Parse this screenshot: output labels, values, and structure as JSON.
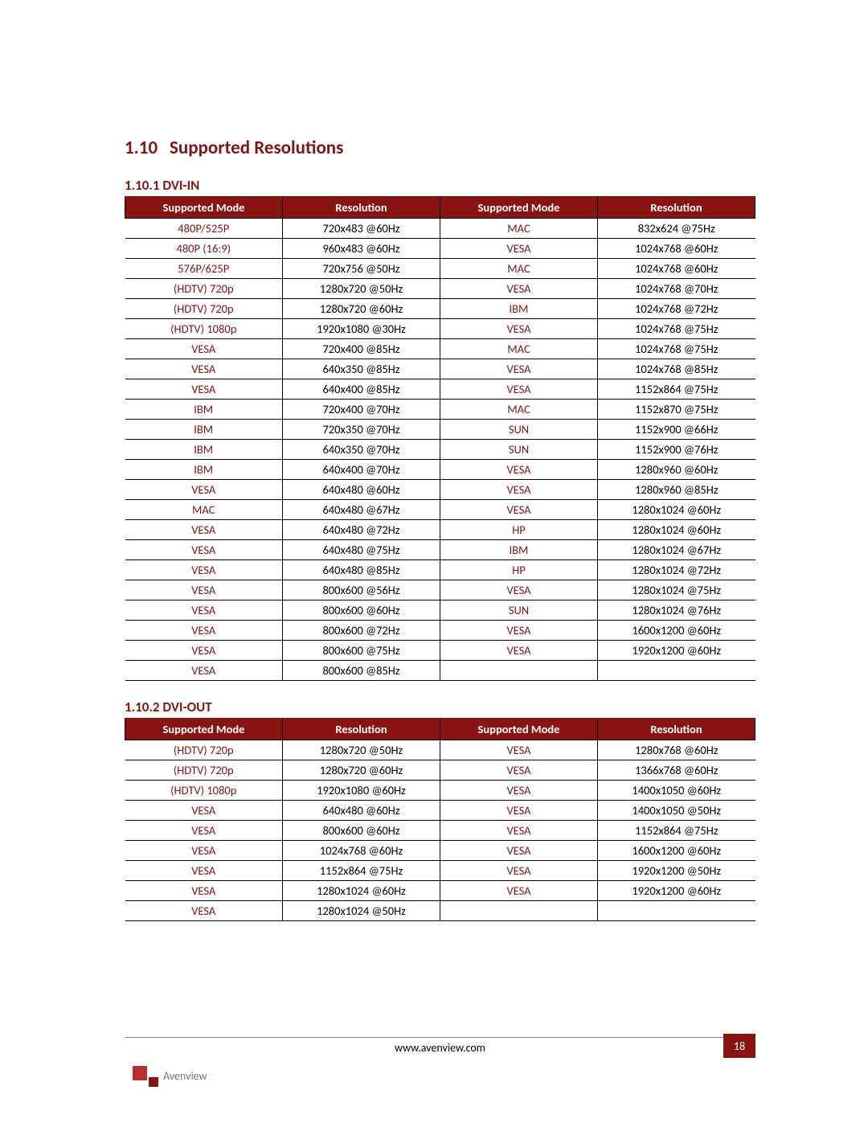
{
  "page": {
    "section_number": "1.10",
    "section_title": "Supported Resolutions",
    "footer_url": "www.avenview.com",
    "page_number": "18",
    "logo_text": "Avenview",
    "colors": {
      "brand_dark": "#7a1818",
      "header_bg": "#881414",
      "header_fg": "#ffffff",
      "text": "#000000",
      "border": "#000000",
      "page_bg": "#ffffff",
      "logo_red1": "#b72c2c",
      "logo_red2": "#881414",
      "logo_text": "#777777"
    }
  },
  "tables": {
    "dvi_in": {
      "heading": "1.10.1 DVI-IN",
      "columns": [
        "Supported Mode",
        "Resolution",
        "Supported Mode",
        "Resolution"
      ],
      "rows": [
        [
          "480P/525P",
          "720x483 @60Hz",
          "MAC",
          "832x624 @75Hz"
        ],
        [
          "480P (16:9)",
          "960x483 @60Hz",
          "VESA",
          "1024x768 @60Hz"
        ],
        [
          "576P/625P",
          "720x756 @50Hz",
          "MAC",
          "1024x768 @60Hz"
        ],
        [
          "(HDTV) 720p",
          "1280x720 @50Hz",
          "VESA",
          "1024x768 @70Hz"
        ],
        [
          "(HDTV) 720p",
          "1280x720 @60Hz",
          "IBM",
          "1024x768 @72Hz"
        ],
        [
          "(HDTV) 1080p",
          "1920x1080 @30Hz",
          "VESA",
          "1024x768 @75Hz"
        ],
        [
          "VESA",
          "720x400 @85Hz",
          "MAC",
          "1024x768 @75Hz"
        ],
        [
          "VESA",
          "640x350 @85Hz",
          "VESA",
          "1024x768 @85Hz"
        ],
        [
          "VESA",
          "640x400 @85Hz",
          "VESA",
          "1152x864 @75Hz"
        ],
        [
          "IBM",
          "720x400 @70Hz",
          "MAC",
          "1152x870 @75Hz"
        ],
        [
          "IBM",
          "720x350 @70Hz",
          "SUN",
          "1152x900 @66Hz"
        ],
        [
          "IBM",
          "640x350 @70Hz",
          "SUN",
          "1152x900 @76Hz"
        ],
        [
          "IBM",
          "640x400 @70Hz",
          "VESA",
          "1280x960 @60Hz"
        ],
        [
          "VESA",
          "640x480 @60Hz",
          "VESA",
          "1280x960 @85Hz"
        ],
        [
          "MAC",
          "640x480 @67Hz",
          "VESA",
          "1280x1024 @60Hz"
        ],
        [
          "VESA",
          "640x480 @72Hz",
          "HP",
          "1280x1024 @60Hz"
        ],
        [
          "VESA",
          "640x480 @75Hz",
          "IBM",
          "1280x1024 @67Hz"
        ],
        [
          "VESA",
          "640x480 @85Hz",
          "HP",
          "1280x1024 @72Hz"
        ],
        [
          "VESA",
          "800x600 @56Hz",
          "VESA",
          "1280x1024 @75Hz"
        ],
        [
          "VESA",
          "800x600 @60Hz",
          "SUN",
          "1280x1024 @76Hz"
        ],
        [
          "VESA",
          "800x600 @72Hz",
          "VESA",
          "1600x1200 @60Hz"
        ],
        [
          "VESA",
          "800x600 @75Hz",
          "VESA",
          "1920x1200 @60Hz"
        ],
        [
          "VESA",
          "800x600 @85Hz",
          "",
          ""
        ]
      ]
    },
    "dvi_out": {
      "heading": "1.10.2 DVI-OUT",
      "columns": [
        "Supported Mode",
        "Resolution",
        "Supported Mode",
        "Resolution"
      ],
      "rows": [
        [
          "(HDTV) 720p",
          "1280x720 @50Hz",
          "VESA",
          "1280x768 @60Hz"
        ],
        [
          "(HDTV) 720p",
          "1280x720 @60Hz",
          "VESA",
          "1366x768 @60Hz"
        ],
        [
          "(HDTV) 1080p",
          "1920x1080 @60Hz",
          "VESA",
          "1400x1050 @60Hz"
        ],
        [
          "VESA",
          "640x480 @60Hz",
          "VESA",
          "1400x1050 @50Hz"
        ],
        [
          "VESA",
          "800x600 @60Hz",
          "VESA",
          "1152x864 @75Hz"
        ],
        [
          "VESA",
          "1024x768 @60Hz",
          "VESA",
          "1600x1200 @60Hz"
        ],
        [
          "VESA",
          "1152x864 @75Hz",
          "VESA",
          "1920x1200 @50Hz"
        ],
        [
          "VESA",
          "1280x1024 @60Hz",
          "VESA",
          "1920x1200 @60Hz"
        ],
        [
          "VESA",
          "1280x1024 @50Hz",
          "",
          ""
        ]
      ]
    }
  }
}
